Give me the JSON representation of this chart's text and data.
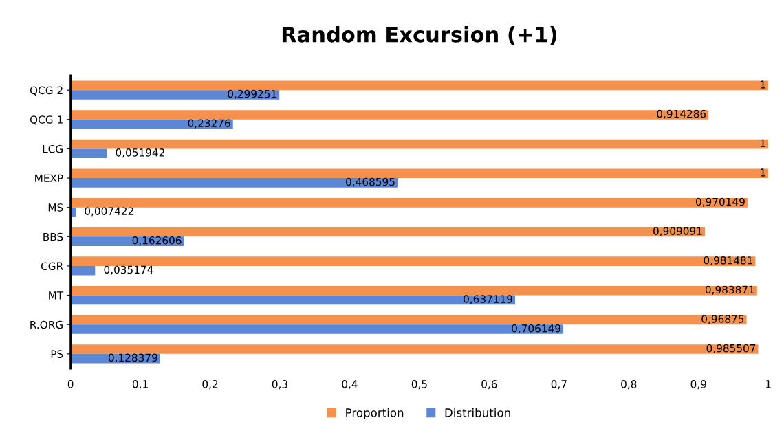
{
  "chart_data": {
    "type": "bar",
    "orientation": "horizontal",
    "title": "Random Excursion (+1)",
    "categories": [
      "QCG 2",
      "QCG 1",
      "LCG",
      "MEXP",
      "MS",
      "BBS",
      "CGR",
      "MT",
      "R.ORG",
      "PS"
    ],
    "series": [
      {
        "name": "Proportion",
        "color": "#f4914f",
        "values": [
          1,
          0.914286,
          1,
          1,
          0.970149,
          0.909091,
          0.981481,
          0.983871,
          0.96875,
          0.985507
        ],
        "value_labels": [
          "1",
          "0,914286",
          "1",
          "1",
          "0,970149",
          "0,909091",
          "0,981481",
          "0,983871",
          "0,96875",
          "0,985507"
        ]
      },
      {
        "name": "Distribution",
        "color": "#5b87d6",
        "values": [
          0.299251,
          0.23276,
          0.051942,
          0.468595,
          0.007422,
          0.162606,
          0.035174,
          0.637119,
          0.706149,
          0.128379
        ],
        "value_labels": [
          "0,299251",
          "0,23276",
          "0,051942",
          "0,468595",
          "0,007422",
          "0,162606",
          "0,035174",
          "0,637119",
          "0,706149",
          "0,128379"
        ]
      }
    ],
    "xlim": [
      0,
      1
    ],
    "xticks": [
      0,
      {
        "value": 0.1,
        "label": "0,1"
      },
      {
        "value": 0.2,
        "label": "0,2"
      },
      {
        "value": 0.3,
        "label": "0,3"
      },
      {
        "value": 0.4,
        "label": "0,4"
      },
      {
        "value": 0.5,
        "label": "0,5"
      },
      {
        "value": 0.6,
        "label": "0,6"
      },
      {
        "value": 0.7,
        "label": "0,7"
      },
      {
        "value": 0.8,
        "label": "0,8"
      },
      {
        "value": 0.9,
        "label": "0,9"
      },
      1
    ],
    "grid": false,
    "legend": "bottom"
  }
}
